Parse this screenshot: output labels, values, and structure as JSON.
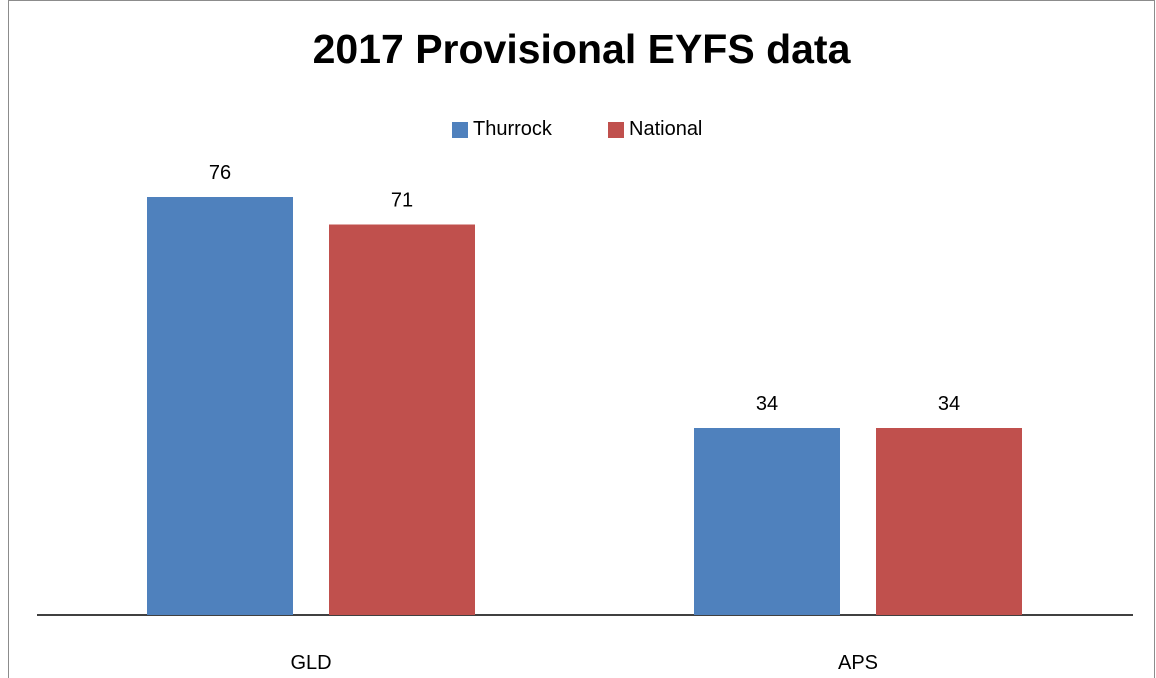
{
  "chart_data": {
    "type": "bar",
    "title": "2017 Provisional EYFS data",
    "categories": [
      "GLD",
      "APS"
    ],
    "series": [
      {
        "name": "Thurrock",
        "values": [
          76,
          34
        ],
        "color": "#4f81bd"
      },
      {
        "name": "National",
        "values": [
          71,
          34
        ],
        "color": "#c0504d"
      }
    ],
    "ylim": [
      0,
      80
    ],
    "grid": false,
    "legend_position": "top",
    "data_labels": true
  }
}
